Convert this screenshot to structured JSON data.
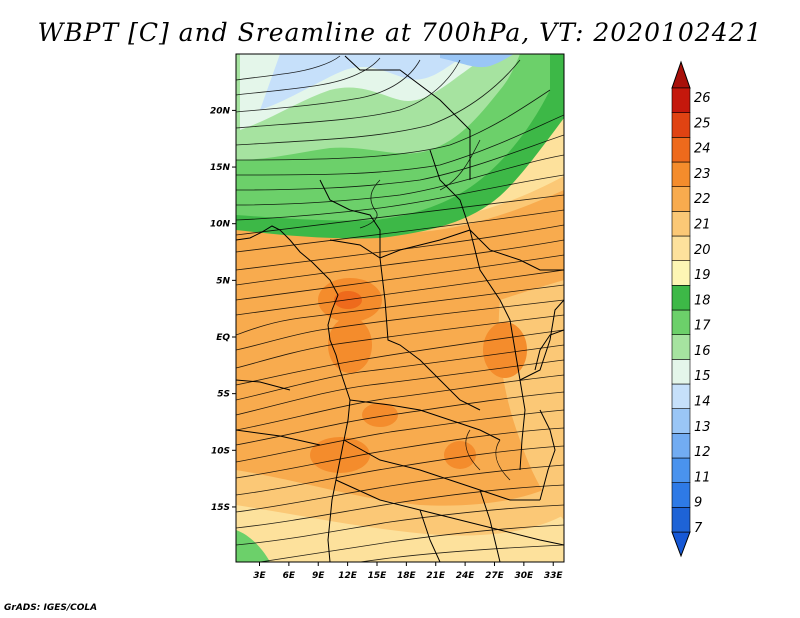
{
  "title": "WBPT [C] and Sreamline at 700hPa, VT: 2020102421",
  "footer": "GrADS: IGES/COLA",
  "map": {
    "lat_labels": [
      {
        "label": "20N",
        "lat": 20
      },
      {
        "label": "15N",
        "lat": 15
      },
      {
        "label": "10N",
        "lat": 10
      },
      {
        "label": "5N",
        "lat": 5
      },
      {
        "label": "EQ",
        "lat": 0
      },
      {
        "label": "5S",
        "lat": -5
      },
      {
        "label": "10S",
        "lat": -10
      },
      {
        "label": "15S",
        "lat": -15
      }
    ],
    "lon_labels": [
      {
        "label": "3E",
        "lon": 3
      },
      {
        "label": "6E",
        "lon": 6
      },
      {
        "label": "9E",
        "lon": 9
      },
      {
        "label": "12E",
        "lon": 12
      },
      {
        "label": "15E",
        "lon": 15
      },
      {
        "label": "18E",
        "lon": 18
      },
      {
        "label": "21E",
        "lon": 21
      },
      {
        "label": "24E",
        "lon": 24
      },
      {
        "label": "27E",
        "lon": 27
      },
      {
        "label": "30E",
        "lon": 30
      },
      {
        "label": "33E",
        "lon": 33
      }
    ]
  },
  "colorbar": {
    "levels": [
      {
        "label": "7",
        "color": "#1e63d6"
      },
      {
        "label": "9",
        "color": "#2e7ae6"
      },
      {
        "label": "11",
        "color": "#4a93ee"
      },
      {
        "label": "12",
        "color": "#72acf2"
      },
      {
        "label": "13",
        "color": "#9ac6f6"
      },
      {
        "label": "14",
        "color": "#c6e0fa"
      },
      {
        "label": "15",
        "color": "#e4f6ea"
      },
      {
        "label": "16",
        "color": "#a6e3a0"
      },
      {
        "label": "17",
        "color": "#6cd06a"
      },
      {
        "label": "18",
        "color": "#3db847"
      },
      {
        "label": "19",
        "color": "#fdf6b4"
      },
      {
        "label": "20",
        "color": "#fde19c"
      },
      {
        "label": "21",
        "color": "#fbc876"
      },
      {
        "label": "22",
        "color": "#f8ab4e"
      },
      {
        "label": "23",
        "color": "#f48c2c"
      },
      {
        "label": "24",
        "color": "#ee6a1c"
      },
      {
        "label": "25",
        "color": "#e04312"
      },
      {
        "label": "26",
        "color": "#c4180c"
      }
    ],
    "low_arrow_color": "#1658d6",
    "high_arrow_color": "#a8100a"
  }
}
